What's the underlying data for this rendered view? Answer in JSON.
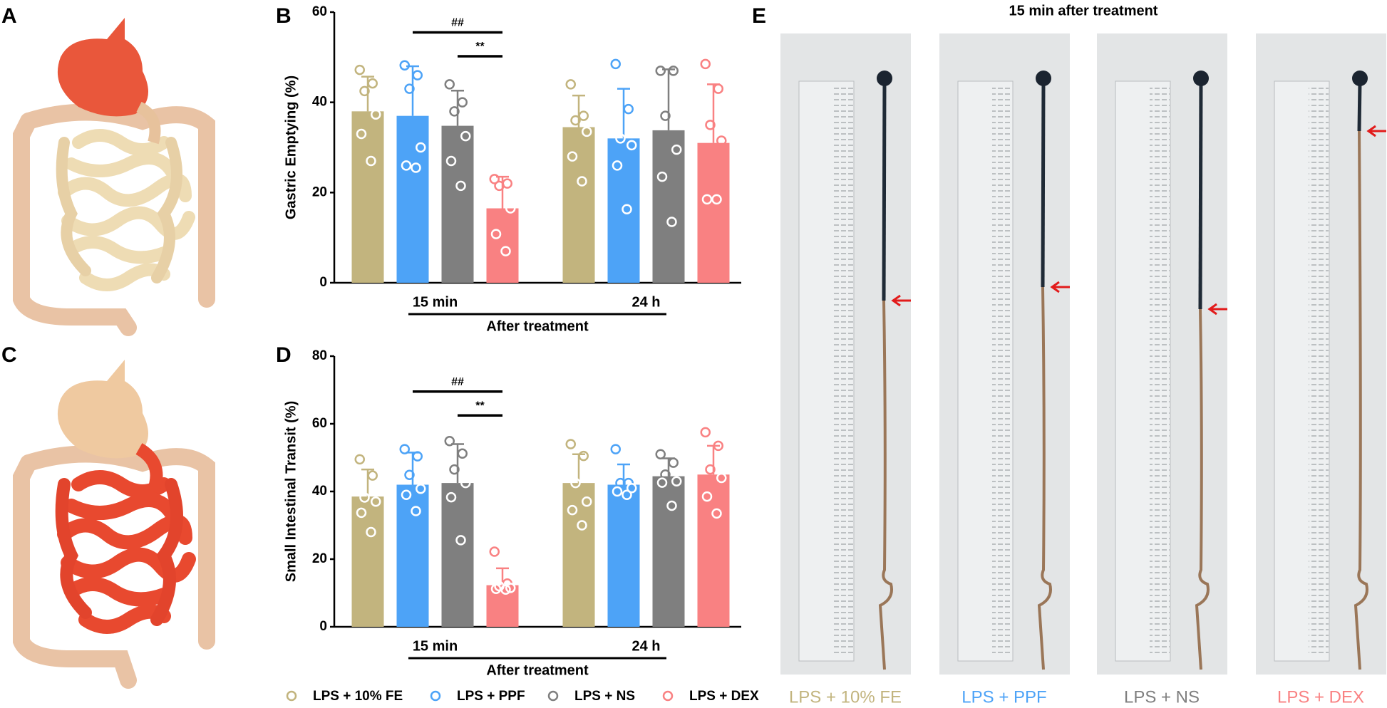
{
  "panels": {
    "a": "A",
    "b": "B",
    "c": "C",
    "d": "D",
    "e": "E"
  },
  "chart_data": [
    {
      "type": "bar",
      "y_label": "Gastric Emptying (%)",
      "x_label": "After treatment",
      "categories": [
        "15 min",
        "24 h"
      ],
      "ylim": [
        0,
        60
      ],
      "yticks": [
        0,
        20,
        40,
        60
      ],
      "legend": false,
      "annotations": [
        "##",
        "**"
      ],
      "series": [
        {
          "name": "LPS + 10% FE",
          "color": "#c2b47e",
          "values": [
            38,
            34.5
          ],
          "errors": [
            7.7,
            7
          ],
          "points": [
            [
              47.2,
              44.2,
              42.5,
              37.3,
              33,
              27
            ],
            [
              44,
              37,
              36,
              33.5,
              28,
              22.5
            ]
          ]
        },
        {
          "name": "LPS + PPF",
          "color": "#4da3f7",
          "values": [
            37,
            32
          ],
          "errors": [
            11,
            11
          ],
          "points": [
            [
              48.2,
              46,
              43,
              30,
              26,
              25.5
            ],
            [
              48.5,
              38.5,
              32,
              30.5,
              26,
              16.3
            ]
          ]
        },
        {
          "name": "LPS + NS",
          "color": "#7f7f7f",
          "values": [
            34.8,
            33.8
          ],
          "errors": [
            7.8,
            13.5
          ],
          "points": [
            [
              44,
              40,
              38,
              32.5,
              27,
              21.5
            ],
            [
              47,
              47,
              37,
              29.5,
              23.5,
              13.5
            ]
          ]
        },
        {
          "name": "LPS + DEX",
          "color": "#f98182",
          "values": [
            16.5,
            31
          ],
          "errors": [
            7,
            13
          ],
          "points": [
            [
              23,
              22,
              21.5,
              16.5,
              10.8,
              7
            ],
            [
              48.5,
              43,
              35,
              31.5,
              18.5,
              18.5
            ]
          ]
        }
      ]
    },
    {
      "type": "bar",
      "y_label": "Small Intestinal Transit (%)",
      "x_label": "After treatment",
      "categories": [
        "15 min",
        "24 h"
      ],
      "ylim": [
        0,
        80
      ],
      "yticks": [
        0,
        20,
        40,
        60,
        80
      ],
      "legend": "bottom",
      "annotations": [
        "##",
        "**"
      ],
      "series": [
        {
          "name": "LPS + 10% FE",
          "color": "#c2b47e",
          "values": [
            38.5,
            42.5
          ],
          "errors": [
            8,
            8.5
          ],
          "points": [
            [
              49.5,
              44.7,
              38.2,
              37,
              33.7,
              28
            ],
            [
              54,
              50.5,
              42.5,
              37,
              34.5,
              30
            ]
          ]
        },
        {
          "name": "LPS + PPF",
          "color": "#4da3f7",
          "values": [
            42,
            42
          ],
          "errors": [
            9.5,
            6
          ],
          "points": [
            [
              52.5,
              50.4,
              44.9,
              40.8,
              39,
              34.2
            ],
            [
              52.5,
              42.5,
              42.5,
              41,
              40,
              39
            ]
          ]
        },
        {
          "name": "LPS + NS",
          "color": "#7f7f7f",
          "values": [
            42.5,
            44.5
          ],
          "errors": [
            11.5,
            5.3
          ],
          "points": [
            [
              54.9,
              51.2,
              46.5,
              42.5,
              38.3,
              25.6
            ],
            [
              51,
              48.5,
              45,
              43,
              42.6,
              35.8
            ]
          ]
        },
        {
          "name": "LPS + DEX",
          "color": "#f98182",
          "values": [
            12.3,
            45
          ],
          "errors": [
            5,
            8.5
          ],
          "points": [
            [
              22.2,
              12.8,
              12,
              11.5,
              11.2,
              11
            ],
            [
              57.5,
              53.5,
              46.5,
              44,
              38.5,
              33.5
            ]
          ]
        }
      ]
    }
  ],
  "panel_e": {
    "title": "15 min after treatment",
    "labels": [
      {
        "text": "LPS + 10% FE",
        "color": "#c2b47e"
      },
      {
        "text": "LPS + PPF",
        "color": "#4da3f7"
      },
      {
        "text": "LPS + NS",
        "color": "#7f7f7f"
      },
      {
        "text": "LPS + DEX",
        "color": "#f98182"
      }
    ]
  }
}
